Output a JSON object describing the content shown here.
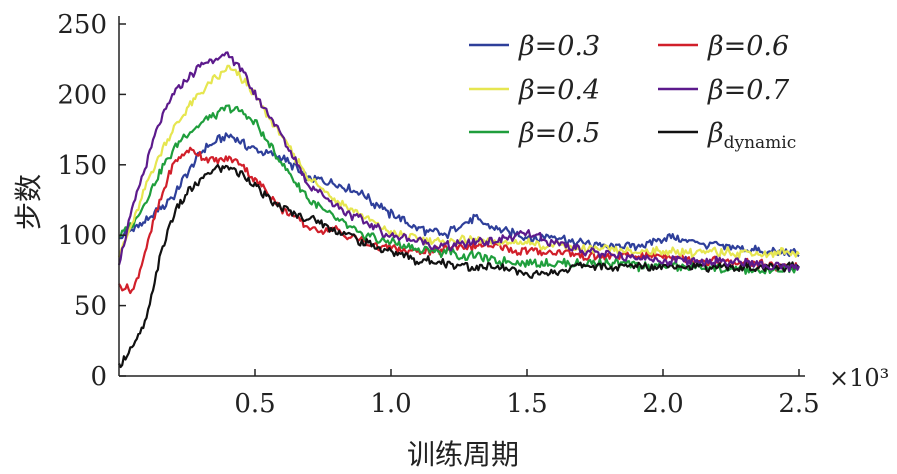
{
  "chart_data": {
    "type": "line",
    "xlabel": "训练周期",
    "ylabel": "步数",
    "x_multiplier": "×10³",
    "xlim": [
      0,
      2.5
    ],
    "ylim": [
      0,
      250
    ],
    "xticks": [
      0.5,
      1.0,
      1.5,
      2.0,
      2.5
    ],
    "xtick_labels": [
      "0.5",
      "1.0",
      "1.5",
      "2.0",
      "2.5"
    ],
    "yticks": [
      0,
      50,
      100,
      150,
      200,
      250
    ],
    "ytick_labels": [
      "0",
      "50",
      "100",
      "150",
      "200",
      "250"
    ],
    "legend_position": "top-right",
    "legend_columns": 2,
    "x": [
      0,
      0.05,
      0.1,
      0.15,
      0.2,
      0.25,
      0.3,
      0.35,
      0.4,
      0.45,
      0.5,
      0.6,
      0.7,
      0.8,
      0.9,
      1.0,
      1.1,
      1.2,
      1.3,
      1.4,
      1.5,
      1.6,
      1.7,
      1.8,
      1.9,
      2.0,
      2.1,
      2.2,
      2.3,
      2.4,
      2.5
    ],
    "series": [
      {
        "name": "β=0.3",
        "name_main": "β=0.3",
        "name_sub": "",
        "color": "#2e3f9a",
        "values": [
          98,
          104,
          110,
          118,
          128,
          143,
          158,
          166,
          172,
          165,
          162,
          155,
          140,
          138,
          128,
          115,
          105,
          100,
          112,
          105,
          98,
          98,
          95,
          92,
          92,
          98,
          96,
          92,
          90,
          88,
          87
        ]
      },
      {
        "name": "β=0.4",
        "name_main": "β=0.4",
        "name_sub": "",
        "color": "#e6e650",
        "values": [
          85,
          110,
          135,
          158,
          176,
          190,
          200,
          210,
          218,
          212,
          198,
          170,
          140,
          125,
          112,
          102,
          97,
          95,
          98,
          95,
          95,
          92,
          90,
          90,
          88,
          88,
          88,
          88,
          87,
          87,
          88
        ]
      },
      {
        "name": "β=0.5",
        "name_main": "β=0.5",
        "name_sub": "",
        "color": "#1f9e3c",
        "values": [
          100,
          108,
          125,
          145,
          160,
          172,
          180,
          186,
          190,
          188,
          180,
          150,
          125,
          110,
          100,
          95,
          90,
          88,
          85,
          82,
          80,
          80,
          80,
          80,
          78,
          78,
          78,
          76,
          75,
          75,
          76
        ]
      },
      {
        "name": "β=0.6",
        "name_main": "β=0.6",
        "name_sub": "",
        "color": "#d11f2a",
        "values": [
          63,
          60,
          90,
          125,
          150,
          160,
          157,
          152,
          155,
          150,
          140,
          118,
          105,
          103,
          95,
          90,
          88,
          90,
          92,
          92,
          88,
          88,
          86,
          86,
          85,
          85,
          83,
          82,
          80,
          78,
          78
        ]
      },
      {
        "name": "β=0.7",
        "name_main": "β=0.7",
        "name_sub": "",
        "color": "#5c1a8c",
        "values": [
          82,
          118,
          150,
          180,
          200,
          210,
          220,
          226,
          229,
          218,
          200,
          170,
          135,
          120,
          110,
          100,
          95,
          92,
          95,
          97,
          100,
          95,
          90,
          85,
          84,
          82,
          82,
          82,
          80,
          78,
          78
        ]
      },
      {
        "name": "βdynamic",
        "name_main": "β",
        "name_sub": "dynamic",
        "color": "#111111",
        "values": [
          8,
          20,
          40,
          85,
          115,
          130,
          140,
          146,
          150,
          143,
          135,
          118,
          112,
          103,
          95,
          88,
          82,
          80,
          78,
          76,
          73,
          73,
          78,
          78,
          78,
          78,
          78,
          77,
          77,
          77,
          78
        ]
      }
    ]
  }
}
